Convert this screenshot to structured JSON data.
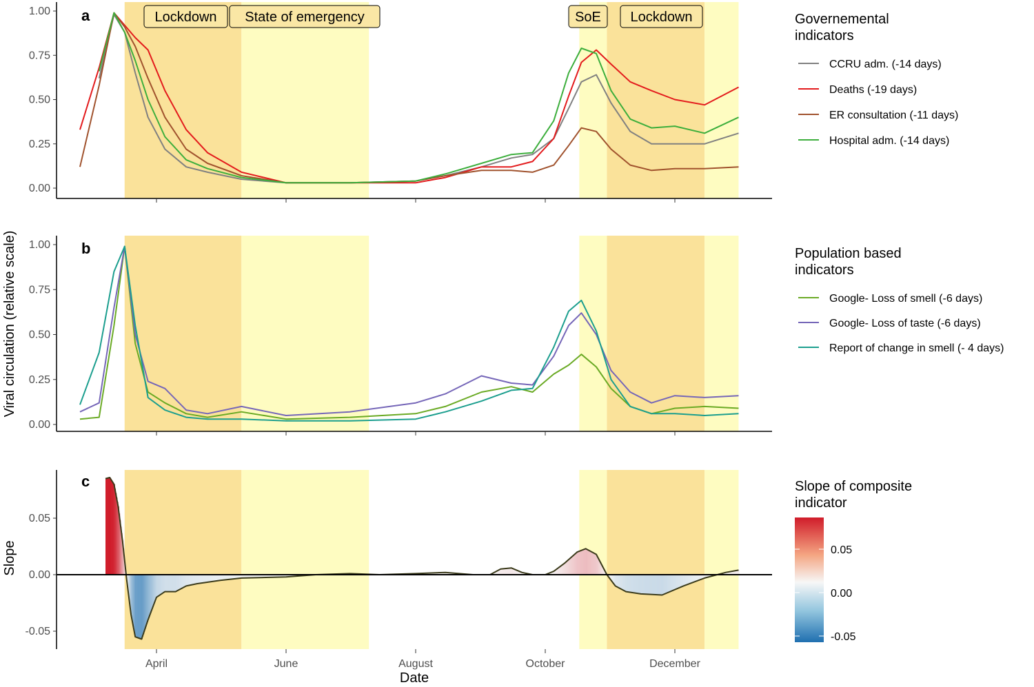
{
  "figure": {
    "y_title_top": "Viral circulation (relative scale)",
    "y_title_bottom": "Slope",
    "x_title": "Date",
    "month_ticks": [
      "April",
      "June",
      "August",
      "October",
      "December"
    ]
  },
  "periods": [
    {
      "label": "Lockdown",
      "start": "2020-03-17",
      "end": "2020-05-11",
      "kind": "lockdown"
    },
    {
      "label": "State of emergency",
      "start": "2020-05-11",
      "end": "2020-07-10",
      "kind": "emergency"
    },
    {
      "label": "SoE",
      "start": "2020-10-17",
      "end": "2020-10-30",
      "kind": "emergency"
    },
    {
      "label": "Lockdown",
      "start": "2020-10-30",
      "end": "2020-12-15",
      "kind": "lockdown"
    },
    {
      "label": "",
      "start": "2020-12-15",
      "end": "2020-12-31",
      "kind": "emergency"
    }
  ],
  "colors": {
    "lockdown": "#fae29a",
    "emergency": "#fefcc1",
    "label_box": "#fae7a5"
  },
  "chart_data": [
    {
      "type": "line",
      "panel": "a",
      "legend_title": "Governemental\n indicators",
      "ylim": [
        0,
        1
      ],
      "yticks": [
        "0.00",
        "0.25",
        "0.50",
        "0.75",
        "1.00"
      ],
      "x_dates": [
        "2020-02-25",
        "2020-03-05",
        "2020-03-12",
        "2020-03-17",
        "2020-03-22",
        "2020-03-28",
        "2020-04-05",
        "2020-04-15",
        "2020-04-25",
        "2020-05-11",
        "2020-06-01",
        "2020-07-01",
        "2020-08-01",
        "2020-08-15",
        "2020-09-01",
        "2020-09-15",
        "2020-09-25",
        "2020-10-05",
        "2020-10-12",
        "2020-10-18",
        "2020-10-25",
        "2020-11-01",
        "2020-11-10",
        "2020-11-20",
        "2020-12-01",
        "2020-12-15",
        "2020-12-31"
      ],
      "series": [
        {
          "name": "CCRU adm. (-14 days)",
          "color": "#808080",
          "values": [
            null,
            0.62,
            0.98,
            0.88,
            0.65,
            0.4,
            0.22,
            0.12,
            0.09,
            0.05,
            0.03,
            0.03,
            0.04,
            0.07,
            0.12,
            0.17,
            0.19,
            0.28,
            0.45,
            0.6,
            0.64,
            0.48,
            0.32,
            0.25,
            0.25,
            0.25,
            0.31
          ]
        },
        {
          "name": "Deaths (-19 days)",
          "color": "#e31a1c",
          "values": [
            0.33,
            0.68,
            0.99,
            0.92,
            0.85,
            0.78,
            0.55,
            0.33,
            0.2,
            0.09,
            0.03,
            0.03,
            0.03,
            0.06,
            0.12,
            0.12,
            0.15,
            0.28,
            0.52,
            0.71,
            0.78,
            0.7,
            0.6,
            0.55,
            0.5,
            0.47,
            0.57
          ]
        },
        {
          "name": "ER consultation (-11 days)",
          "color": "#a0522d",
          "values": [
            0.12,
            0.58,
            0.99,
            0.91,
            0.8,
            0.62,
            0.4,
            0.22,
            0.14,
            0.07,
            0.03,
            0.03,
            0.04,
            0.07,
            0.1,
            0.1,
            0.09,
            0.13,
            0.24,
            0.34,
            0.32,
            0.22,
            0.13,
            0.1,
            0.11,
            0.11,
            0.12
          ]
        },
        {
          "name": "Hospital adm. (-14 days)",
          "color": "#3cae3c",
          "values": [
            null,
            0.66,
            0.99,
            0.88,
            0.72,
            0.5,
            0.29,
            0.16,
            0.11,
            0.06,
            0.03,
            0.03,
            0.04,
            0.08,
            0.14,
            0.19,
            0.2,
            0.38,
            0.65,
            0.79,
            0.76,
            0.55,
            0.39,
            0.34,
            0.35,
            0.31,
            0.4
          ]
        }
      ]
    },
    {
      "type": "line",
      "panel": "b",
      "legend_title": "Population based\n indicators",
      "ylim": [
        0,
        1
      ],
      "yticks": [
        "0.00",
        "0.25",
        "0.50",
        "0.75",
        "1.00"
      ],
      "x_dates": [
        "2020-02-25",
        "2020-03-05",
        "2020-03-12",
        "2020-03-17",
        "2020-03-22",
        "2020-03-28",
        "2020-04-05",
        "2020-04-15",
        "2020-04-25",
        "2020-05-11",
        "2020-06-01",
        "2020-07-01",
        "2020-08-01",
        "2020-08-15",
        "2020-09-01",
        "2020-09-15",
        "2020-09-25",
        "2020-10-05",
        "2020-10-12",
        "2020-10-18",
        "2020-10-25",
        "2020-11-01",
        "2020-11-10",
        "2020-11-20",
        "2020-12-01",
        "2020-12-15",
        "2020-12-31"
      ],
      "series": [
        {
          "name": "Google- Loss of smell  (-6 days)",
          "color": "#6aaa24",
          "values": [
            0.03,
            0.04,
            0.55,
            0.99,
            0.45,
            0.18,
            0.12,
            0.06,
            0.04,
            0.07,
            0.03,
            0.04,
            0.06,
            0.1,
            0.18,
            0.21,
            0.18,
            0.28,
            0.33,
            0.39,
            0.32,
            0.2,
            0.1,
            0.06,
            0.09,
            0.1,
            0.09
          ]
        },
        {
          "name": "Google- Loss of taste (-6 days)",
          "color": "#7566b8",
          "values": [
            0.07,
            0.12,
            0.65,
            0.99,
            0.5,
            0.24,
            0.2,
            0.08,
            0.06,
            0.1,
            0.05,
            0.07,
            0.12,
            0.17,
            0.27,
            0.23,
            0.22,
            0.38,
            0.55,
            0.62,
            0.5,
            0.3,
            0.18,
            0.12,
            0.16,
            0.15,
            0.16
          ]
        },
        {
          "name": "Report of change in smell (- 4 days)",
          "color": "#1b9e8e",
          "values": [
            0.11,
            0.4,
            0.85,
            0.99,
            0.55,
            0.15,
            0.08,
            0.04,
            0.03,
            0.03,
            0.02,
            0.02,
            0.03,
            0.07,
            0.13,
            0.19,
            0.2,
            0.43,
            0.63,
            0.69,
            0.52,
            0.25,
            0.1,
            0.06,
            0.06,
            0.05,
            0.06
          ]
        }
      ]
    },
    {
      "type": "area",
      "panel": "c",
      "legend_title": "Slope of composite\n indicator",
      "ylim": [
        -0.065,
        0.09
      ],
      "yticks": [
        "-0.05",
        "0.00",
        "0.05"
      ],
      "scale_ticks": [
        "0.05",
        "0.00",
        "-0.05"
      ],
      "scale_colors": {
        "high": "#d01c2a",
        "mid": "#f7f7f7",
        "low": "#1f6fb0"
      },
      "x_dates": [
        "2020-03-08",
        "2020-03-10",
        "2020-03-12",
        "2020-03-14",
        "2020-03-16",
        "2020-03-18",
        "2020-03-20",
        "2020-03-22",
        "2020-03-25",
        "2020-03-28",
        "2020-04-01",
        "2020-04-05",
        "2020-04-10",
        "2020-04-15",
        "2020-04-20",
        "2020-05-01",
        "2020-05-11",
        "2020-06-01",
        "2020-06-15",
        "2020-07-01",
        "2020-07-15",
        "2020-08-01",
        "2020-08-15",
        "2020-08-28",
        "2020-09-05",
        "2020-09-10",
        "2020-09-15",
        "2020-09-20",
        "2020-09-25",
        "2020-10-01",
        "2020-10-05",
        "2020-10-10",
        "2020-10-13",
        "2020-10-16",
        "2020-10-20",
        "2020-10-25",
        "2020-10-30",
        "2020-11-03",
        "2020-11-08",
        "2020-11-15",
        "2020-11-25",
        "2020-12-05",
        "2020-12-15",
        "2020-12-25",
        "2020-12-31"
      ],
      "values": [
        0.085,
        0.086,
        0.08,
        0.06,
        0.03,
        -0.005,
        -0.035,
        -0.055,
        -0.057,
        -0.04,
        -0.02,
        -0.015,
        -0.015,
        -0.01,
        -0.008,
        -0.005,
        -0.003,
        -0.002,
        0.0,
        0.001,
        0.0,
        0.001,
        0.002,
        0.0,
        0.0,
        0.005,
        0.006,
        0.002,
        0.0,
        0.0,
        0.003,
        0.01,
        0.015,
        0.02,
        0.023,
        0.018,
        0.0,
        -0.01,
        -0.015,
        -0.017,
        -0.018,
        -0.01,
        -0.003,
        0.002,
        0.004
      ]
    }
  ]
}
